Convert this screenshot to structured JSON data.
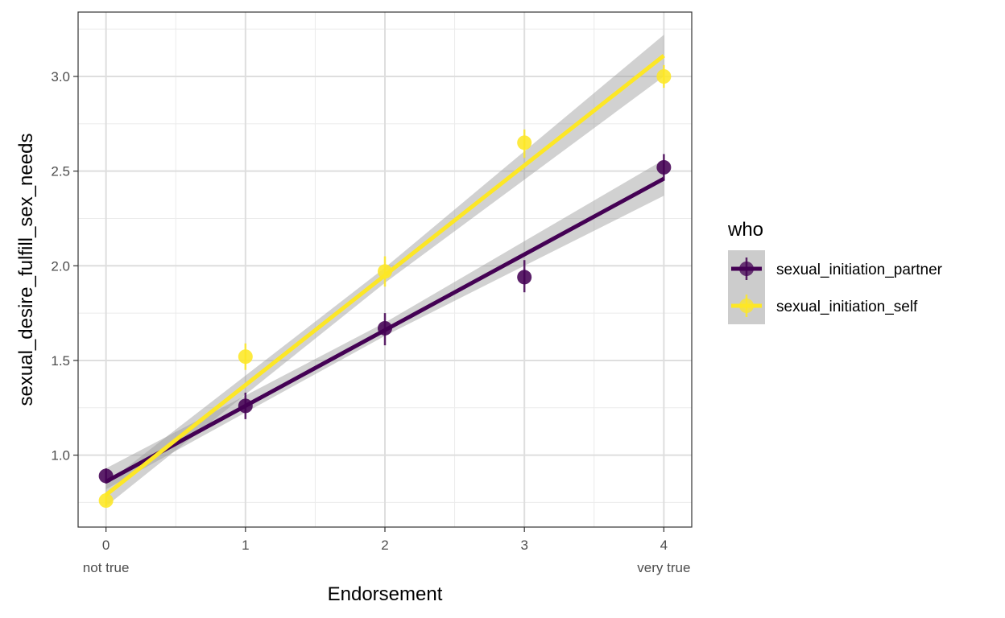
{
  "chart_data": {
    "type": "scatter",
    "title": "",
    "xlabel": "Endorsement",
    "ylabel": "sexual_desire_fulfill_sex_needs",
    "x_ticks": [
      0,
      1,
      2,
      3,
      4
    ],
    "x_tick_labels": [
      "0",
      "1",
      "2",
      "3",
      "4"
    ],
    "x_sub_labels": [
      {
        "x": 0,
        "text": "not true"
      },
      {
        "x": 4,
        "text": "very true"
      }
    ],
    "y_ticks": [
      1.0,
      1.5,
      2.0,
      2.5,
      3.0
    ],
    "y_tick_labels": [
      "1.0",
      "1.5",
      "2.0",
      "2.5",
      "3.0"
    ],
    "xlim": [
      -0.2,
      4.2
    ],
    "ylim": [
      0.62,
      3.34
    ],
    "grid": true,
    "legend": {
      "title": "who",
      "position": "right"
    },
    "series": [
      {
        "name": "sexual_initiation_partner",
        "color": "#440154",
        "x": [
          0,
          1,
          2,
          3,
          4
        ],
        "y": [
          0.89,
          1.26,
          1.67,
          1.94,
          2.52
        ],
        "err_low": [
          0.85,
          1.19,
          1.58,
          1.86,
          2.45
        ],
        "err_high": [
          0.93,
          1.33,
          1.75,
          2.03,
          2.59
        ],
        "fit": {
          "intercept": 0.86,
          "slope": 0.4
        },
        "band": [
          {
            "x": 0,
            "low": 0.82,
            "high": 0.93
          },
          {
            "x": 2,
            "low": 1.63,
            "high": 1.7
          },
          {
            "x": 4,
            "low": 2.37,
            "high": 2.56
          }
        ]
      },
      {
        "name": "sexual_initiation_self",
        "color": "#FDE725",
        "x": [
          0,
          1,
          2,
          3,
          4
        ],
        "y": [
          0.76,
          1.52,
          1.97,
          2.65,
          3.0
        ],
        "err_low": [
          0.73,
          1.45,
          1.89,
          2.57,
          2.94
        ],
        "err_high": [
          0.8,
          1.59,
          2.05,
          2.72,
          3.06
        ],
        "fit": {
          "intercept": 0.79,
          "slope": 0.58
        },
        "band": [
          {
            "x": 0,
            "low": 0.73,
            "high": 0.85
          },
          {
            "x": 2,
            "low": 1.91,
            "high": 1.99
          },
          {
            "x": 4,
            "low": 3.0,
            "high": 3.22
          }
        ]
      }
    ]
  }
}
